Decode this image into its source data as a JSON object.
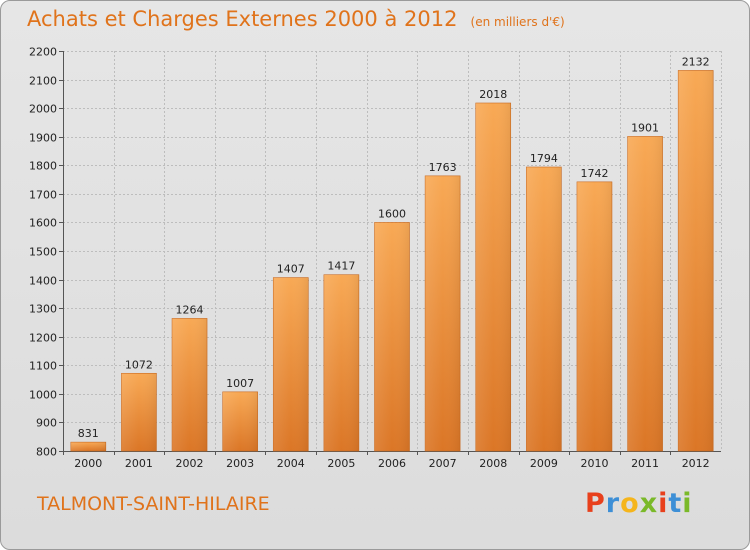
{
  "header": {
    "title": "Achats et Charges Externes 2000 à 2012",
    "subtitle": "(en milliers d'€)"
  },
  "footer": {
    "commune": "TALMONT-SAINT-HILAIRE",
    "logo_text": "Proxiti",
    "logo_colors": [
      "#e8401c",
      "#3d8fd6",
      "#f5b51c",
      "#7ab929",
      "#e8401c",
      "#3d8fd6",
      "#7ab929"
    ]
  },
  "colors": {
    "bar_light": "#f8a955",
    "bar_dark": "#db7626",
    "title": "#e0731b",
    "grid": "#bdbdbd"
  },
  "chart_data": {
    "type": "bar",
    "title": "Achats et Charges Externes 2000 à 2012",
    "subtitle": "(en milliers d'€)",
    "categories": [
      "2000",
      "2001",
      "2002",
      "2003",
      "2004",
      "2005",
      "2006",
      "2007",
      "2008",
      "2009",
      "2010",
      "2011",
      "2012"
    ],
    "values": [
      831,
      1072,
      1264,
      1007,
      1407,
      1417,
      1600,
      1763,
      2018,
      1794,
      1742,
      1901,
      2132
    ],
    "ylim": [
      800,
      2200
    ],
    "yticks": [
      800,
      900,
      1000,
      1100,
      1200,
      1300,
      1400,
      1500,
      1600,
      1700,
      1800,
      1900,
      2000,
      2100,
      2200
    ],
    "grid": true,
    "data_labels": true
  }
}
